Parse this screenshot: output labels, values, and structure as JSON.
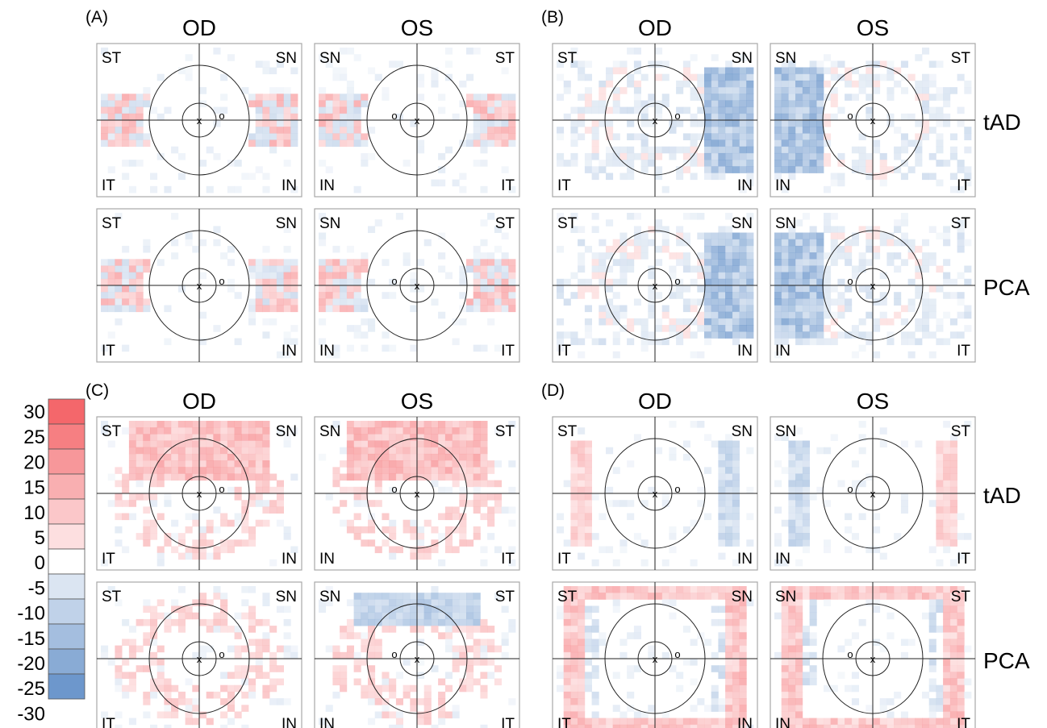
{
  "legend": {
    "ticks": [
      "30",
      "25",
      "20",
      "15",
      "10",
      "5",
      "0",
      "-5",
      "-10",
      "-15",
      "-20",
      "-25",
      "-30"
    ],
    "steps": [
      30,
      25,
      20,
      15,
      10,
      5,
      0,
      -5,
      -10,
      -15,
      -20,
      -25
    ],
    "colors": {
      "positive": "#f4676b",
      "negative": "#5284c2",
      "zero": "#ffffff"
    }
  },
  "groups": [
    {
      "id": "A",
      "label": "(A)",
      "eyes": [
        "OD",
        "OS"
      ],
      "rows": [
        {
          "label": "",
          "panels": [
            {
              "eye": "OD",
              "corners": [
                "ST",
                "SN",
                "IT",
                "IN"
              ]
            },
            {
              "eye": "OS",
              "corners": [
                "SN",
                "ST",
                "IN",
                "IT"
              ]
            }
          ]
        },
        {
          "label": "",
          "panels": [
            {
              "eye": "OD",
              "corners": [
                "ST",
                "SN",
                "IT",
                "IN"
              ]
            },
            {
              "eye": "OS",
              "corners": [
                "SN",
                "ST",
                "IN",
                "IT"
              ]
            }
          ]
        }
      ]
    },
    {
      "id": "B",
      "label": "(B)",
      "eyes": [
        "OD",
        "OS"
      ],
      "rows": [
        {
          "label": "tAD",
          "panels": [
            {
              "eye": "OD",
              "corners": [
                "ST",
                "SN",
                "IT",
                "IN"
              ]
            },
            {
              "eye": "OS",
              "corners": [
                "SN",
                "ST",
                "IN",
                "IT"
              ]
            }
          ]
        },
        {
          "label": "PCA",
          "panels": [
            {
              "eye": "OD",
              "corners": [
                "ST",
                "SN",
                "IT",
                "IN"
              ]
            },
            {
              "eye": "OS",
              "corners": [
                "SN",
                "ST",
                "IN",
                "IT"
              ]
            }
          ]
        }
      ]
    },
    {
      "id": "C",
      "label": "(C)",
      "eyes": [
        "OD",
        "OS"
      ],
      "rows": [
        {
          "label": "",
          "panels": [
            {
              "eye": "OD",
              "corners": [
                "ST",
                "SN",
                "IT",
                "IN"
              ]
            },
            {
              "eye": "OS",
              "corners": [
                "SN",
                "ST",
                "IN",
                "IT"
              ]
            }
          ]
        },
        {
          "label": "",
          "panels": [
            {
              "eye": "OD",
              "corners": [
                "ST",
                "SN",
                "IT",
                "IN"
              ]
            },
            {
              "eye": "OS",
              "corners": [
                "SN",
                "ST",
                "IN",
                "IT"
              ]
            }
          ]
        }
      ]
    },
    {
      "id": "D",
      "label": "(D)",
      "eyes": [
        "OD",
        "OS"
      ],
      "rows": [
        {
          "label": "tAD",
          "panels": [
            {
              "eye": "OD",
              "corners": [
                "ST",
                "SN",
                "IT",
                "IN"
              ]
            },
            {
              "eye": "OS",
              "corners": [
                "SN",
                "ST",
                "IN",
                "IT"
              ]
            }
          ]
        },
        {
          "label": "PCA",
          "panels": [
            {
              "eye": "OD",
              "corners": [
                "ST",
                "SN",
                "IT",
                "IN"
              ]
            },
            {
              "eye": "OS",
              "corners": [
                "SN",
                "ST",
                "IN",
                "IT"
              ]
            }
          ]
        }
      ]
    }
  ],
  "markers": {
    "fovea": "x",
    "disc": "o"
  }
}
